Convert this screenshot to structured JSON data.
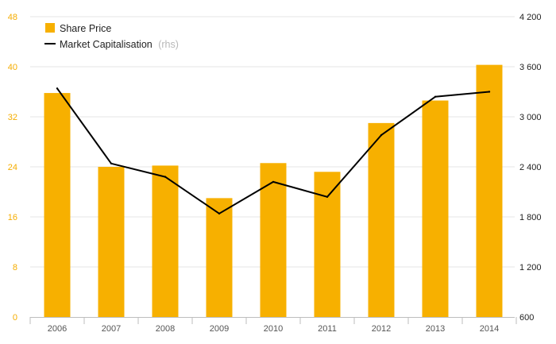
{
  "chart_data": {
    "type": "bar",
    "categories": [
      "2006",
      "2007",
      "2008",
      "2009",
      "2010",
      "2011",
      "2012",
      "2013",
      "2014"
    ],
    "series": [
      {
        "name": "Share Price",
        "type": "bar",
        "axis": "left",
        "color": "#f7b000",
        "values": [
          35.8,
          24.0,
          24.2,
          19.0,
          24.6,
          23.2,
          31.0,
          34.6,
          40.3
        ]
      },
      {
        "name": "Market Capitalisation",
        "note": "(rhs)",
        "type": "line",
        "axis": "right",
        "color": "#000000",
        "values": [
          3340,
          2440,
          2280,
          1840,
          2220,
          2040,
          2780,
          3240,
          3300
        ]
      }
    ],
    "y_left": {
      "ticks": [
        "0",
        "8",
        "16",
        "24",
        "32",
        "40",
        "48"
      ],
      "ylim": [
        0,
        48
      ],
      "color": "#f5ad00"
    },
    "y_right": {
      "ticks": [
        "600",
        "1 200",
        "1 800",
        "2 400",
        "3 000",
        "3 600",
        "4 200"
      ],
      "ylim": [
        600,
        4200
      ],
      "color": "#222222"
    },
    "grid": true,
    "legend_position": "top-left"
  }
}
